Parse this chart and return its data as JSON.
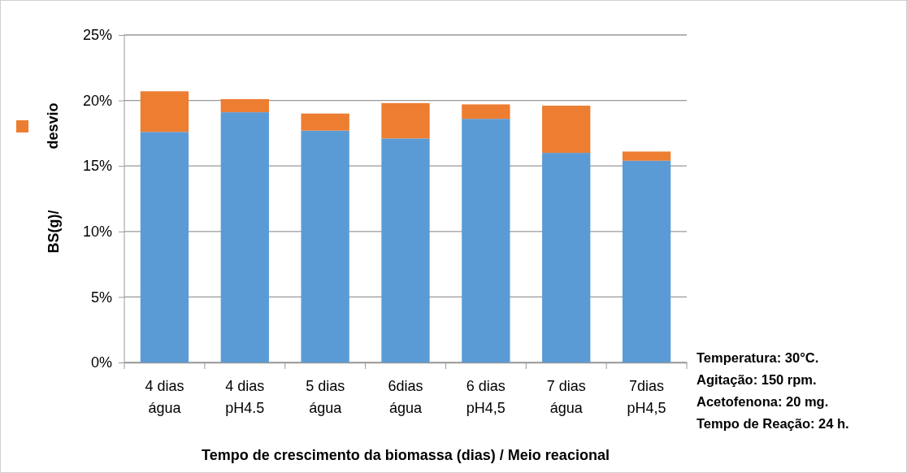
{
  "chart_data": {
    "type": "bar",
    "stacked": true,
    "categories": [
      "4 dias\nágua",
      "4 dias\npH4.5",
      "5 dias\nágua",
      "6dias\nágua",
      "6 dias\npH4,5",
      "7 dias\nágua",
      "7dias\npH4,5"
    ],
    "series": [
      {
        "color": "#5b9bd5",
        "values": [
          17.6,
          19.1,
          17.7,
          17.1,
          18.6,
          16.0,
          15.4
        ]
      },
      {
        "name": "desvio",
        "color": "#ed7d31",
        "values": [
          3.1,
          1.0,
          1.3,
          2.7,
          1.1,
          3.6,
          0.7
        ]
      }
    ],
    "ylim": [
      0,
      25
    ],
    "yticks": [
      {
        "value": 0,
        "label": "0%"
      },
      {
        "value": 5,
        "label": "5%"
      },
      {
        "value": 10,
        "label": "10%"
      },
      {
        "value": 15,
        "label": "15%"
      },
      {
        "value": 20,
        "label": "20%"
      },
      {
        "value": 25,
        "label": "25%"
      }
    ],
    "grid": "y",
    "legend": "left",
    "xlabel": "Tempo de crescimento da biomassa (dias) / Meio reacional",
    "ylabel": "BS(g)/",
    "annotations": [
      "Temperatura: 30°C.",
      "Agitação: 150 rpm.",
      "Acetofenona: 20 mg.",
      "Tempo de Reação: 24 h."
    ]
  }
}
